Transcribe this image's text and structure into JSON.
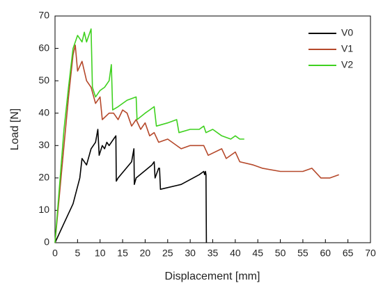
{
  "chart_data": {
    "type": "line",
    "x_label": "Displacement [mm]",
    "y_label": "Load [N]",
    "xlim": [
      0,
      70
    ],
    "ylim": [
      0,
      70
    ],
    "xticks": [
      0,
      5,
      10,
      15,
      20,
      25,
      30,
      35,
      40,
      45,
      50,
      55,
      60,
      65,
      70
    ],
    "yticks": [
      0,
      10,
      20,
      30,
      40,
      50,
      60,
      70
    ],
    "grid": false,
    "legend": "upper-right",
    "series": [
      {
        "name": "V0",
        "color": "#000000",
        "x": [
          0,
          2,
          4,
          5.5,
          6,
          7,
          8,
          9,
          9.5,
          9.8,
          10.5,
          11,
          11.5,
          12,
          13,
          13.5,
          13.6,
          14,
          17,
          17.5,
          17.6,
          18,
          21.5,
          22,
          22.2,
          23,
          23.2,
          23.4,
          28,
          32,
          33,
          33.2,
          33.4,
          33.5,
          33.6
        ],
        "values": [
          0,
          6,
          12,
          20,
          26,
          24,
          29,
          31,
          35,
          27,
          30,
          29,
          31,
          30,
          32,
          33,
          19,
          20,
          25,
          29,
          18,
          20,
          24,
          25,
          20,
          23,
          23,
          16.5,
          18,
          21,
          22,
          21,
          22,
          21,
          0
        ]
      },
      {
        "name": "V1",
        "color": "#b5482a",
        "x": [
          0,
          2,
          3,
          4,
          4.5,
          5,
          6,
          7,
          8,
          9,
          10,
          10.5,
          12,
          13,
          14,
          15,
          16,
          17,
          18,
          19,
          20,
          21,
          22,
          23,
          25,
          28,
          30,
          33,
          34,
          37,
          38,
          40,
          41,
          44,
          46,
          50,
          55,
          57,
          59,
          61,
          63
        ],
        "values": [
          0,
          30,
          45,
          58,
          61,
          53,
          56,
          50,
          48,
          43,
          45,
          38,
          40,
          40,
          38,
          41,
          40,
          36,
          38,
          35,
          37,
          33,
          34,
          31,
          32,
          29,
          30,
          30,
          27,
          29,
          26,
          28,
          25,
          24,
          23,
          22,
          22,
          23,
          20,
          20,
          21
        ]
      },
      {
        "name": "V2",
        "color": "#3fd11f",
        "x": [
          0,
          2,
          3,
          4,
          5,
          6,
          6.5,
          7,
          8,
          8.3,
          9,
          10,
          11,
          12,
          12.5,
          12.8,
          14,
          16,
          18,
          18.2,
          20,
          21,
          22,
          22.5,
          25,
          27,
          27.5,
          30,
          32,
          33,
          33.5,
          35,
          37,
          39,
          40,
          41,
          42
        ],
        "values": [
          0,
          35,
          48,
          60,
          64,
          62,
          65,
          62,
          66,
          48,
          45,
          47,
          48,
          50,
          55,
          41,
          42,
          44,
          45,
          38,
          40,
          41,
          42,
          36,
          37,
          38,
          34,
          35,
          35,
          36,
          34,
          35,
          33,
          32,
          33,
          32,
          32
        ]
      }
    ]
  }
}
